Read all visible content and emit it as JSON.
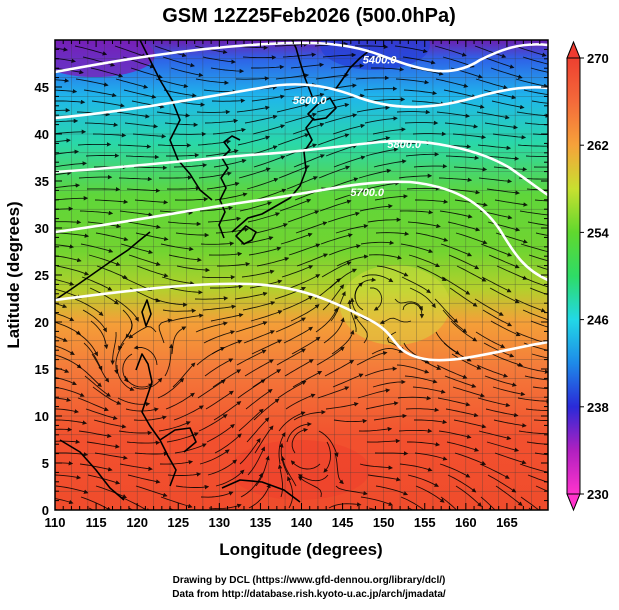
{
  "title": "GSM 12Z25Feb2026 (500.0hPa)",
  "chart_data": {
    "type": "heatmap",
    "title": "GSM 12Z25Feb2026 (500.0hPa)",
    "xlabel": "Longitude (degrees)",
    "ylabel": "Latitude  (degrees)",
    "xlim": [
      110,
      170
    ],
    "ylim": [
      0,
      50
    ],
    "x_ticks": [
      "110",
      "115",
      "120",
      "125",
      "130",
      "135",
      "140",
      "145",
      "150",
      "155",
      "160",
      "165"
    ],
    "y_ticks": [
      "0",
      "5",
      "10",
      "15",
      "20",
      "25",
      "30",
      "35",
      "40",
      "45"
    ],
    "colorbar": {
      "min": 230,
      "max": 270,
      "ticks": [
        "230",
        "238",
        "246",
        "254",
        "262",
        "270"
      ]
    },
    "contours": [
      {
        "label": "5400.0",
        "lon": 149.5,
        "lat": 47.5
      },
      {
        "label": "5600.0",
        "lon": 141,
        "lat": 43.2
      },
      {
        "label": "5800.0",
        "lon": 152.5,
        "lat": 38.5
      },
      {
        "label": "5700.0",
        "lon": 148,
        "lat": 33.4
      }
    ],
    "grid": true
  },
  "credits": [
    "Drawing by DCL (https://www.gfd-dennou.org/library/dcl/)",
    "Data from http://database.rish.kyoto-u.ac.jp/arch/jmadata/"
  ]
}
